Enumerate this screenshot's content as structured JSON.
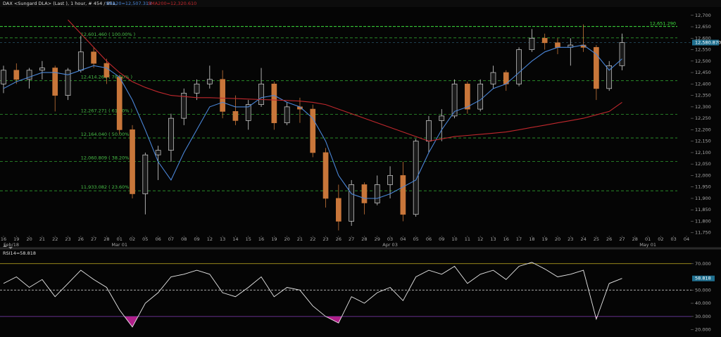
{
  "chart_data": [
    {
      "type": "candlestick",
      "title": "DAX <Sungard DLA> (Last ), 1 hour, # 454 / 851,",
      "categories": [
        "16",
        "19",
        "20",
        "21",
        "22",
        "23",
        "26",
        "27",
        "28",
        "01",
        "02",
        "05",
        "06",
        "07",
        "08",
        "09",
        "12",
        "13",
        "14",
        "15",
        "16",
        "19",
        "20",
        "21",
        "22",
        "23",
        "26",
        "27",
        "28",
        "29",
        "03",
        "04",
        "05",
        "06",
        "09",
        "10",
        "11",
        "12",
        "13",
        "16",
        "17",
        "18",
        "19",
        "20",
        "23",
        "24",
        "25",
        "26",
        "27",
        "28",
        "01",
        "02",
        "03",
        "04"
      ],
      "period_labels": [
        "Feb/18",
        "Mar 01",
        "Apr 03",
        "May 01"
      ],
      "open": [
        12400,
        12460,
        12420,
        12460,
        12470,
        12350,
        12460,
        12540,
        12490,
        12430,
        12200,
        11920,
        12090,
        12110,
        12250,
        12360,
        12400,
        12420,
        12280,
        12240,
        12310,
        12400,
        12230,
        12300,
        12290,
        12100,
        11900,
        11800,
        11960,
        11880,
        11960,
        12000,
        11830,
        12150,
        12240,
        12260,
        12400,
        12290,
        12400,
        12450,
        12400,
        12550,
        12600,
        12580,
        12560,
        12570,
        12560,
        12380,
        12480,
        null,
        null,
        null,
        null,
        null
      ],
      "high": [
        12480,
        12490,
        12470,
        12500,
        12480,
        12470,
        12610,
        12560,
        12510,
        12440,
        12220,
        12100,
        12130,
        12270,
        12380,
        12420,
        12480,
        12460,
        12350,
        12330,
        12470,
        12410,
        12320,
        12340,
        12310,
        12120,
        11960,
        11980,
        11970,
        12000,
        12040,
        12060,
        12160,
        12260,
        12290,
        12420,
        12410,
        12420,
        12480,
        12460,
        12560,
        12640,
        12620,
        12600,
        12600,
        12660,
        12570,
        12500,
        12620,
        null,
        null,
        null,
        null,
        null
      ],
      "low": [
        12360,
        12400,
        12380,
        12420,
        12280,
        12330,
        12450,
        12470,
        12400,
        12180,
        11900,
        11830,
        11980,
        12060,
        12220,
        12330,
        12380,
        12250,
        12220,
        12200,
        12300,
        12200,
        12220,
        12230,
        12080,
        11860,
        11760,
        11780,
        11830,
        11870,
        11900,
        11800,
        11820,
        12100,
        12150,
        12250,
        12270,
        12280,
        12380,
        12370,
        12390,
        12540,
        12550,
        12530,
        12480,
        12540,
        12330,
        12370,
        12460,
        null,
        null,
        null,
        null,
        null
      ],
      "close": [
        12460,
        12420,
        12460,
        12470,
        12350,
        12460,
        12540,
        12490,
        12430,
        12200,
        11920,
        12090,
        12110,
        12250,
        12360,
        12400,
        12420,
        12280,
        12240,
        12310,
        12400,
        12230,
        12300,
        12290,
        12100,
        11900,
        11800,
        11960,
        11880,
        11960,
        12000,
        11830,
        12150,
        12240,
        12260,
        12400,
        12290,
        12400,
        12450,
        12400,
        12550,
        12600,
        12580,
        12560,
        12570,
        12560,
        12380,
        12480,
        12580.87,
        null,
        null,
        null,
        null,
        null
      ],
      "up_color": "#d6d6d6",
      "down_color": "#c8763a",
      "series": [
        {
          "name": "SMA20=12,507.313",
          "color": "#4a86d8",
          "values": [
            12380,
            12410,
            12430,
            12450,
            12450,
            12440,
            12460,
            12480,
            12470,
            12430,
            12330,
            12200,
            12060,
            11980,
            12100,
            12200,
            12300,
            12320,
            12300,
            12300,
            12340,
            12350,
            12320,
            12300,
            12250,
            12150,
            12000,
            11920,
            11900,
            11900,
            11920,
            11950,
            11980,
            12100,
            12200,
            12280,
            12300,
            12330,
            12380,
            12400,
            12450,
            12500,
            12540,
            12560,
            12560,
            12570,
            12530,
            12460,
            12510,
            null,
            null,
            null,
            null,
            null
          ]
        },
        {
          "name": "SMA200=12,320.610",
          "color": "#c0282d",
          "values": [
            null,
            null,
            null,
            null,
            null,
            12680,
            12620,
            12560,
            12500,
            12450,
            12410,
            12385,
            12365,
            12350,
            12345,
            12340,
            12340,
            12338,
            12336,
            12334,
            12332,
            12330,
            12328,
            12325,
            12320,
            12310,
            12290,
            12270,
            12250,
            12230,
            12210,
            12190,
            12170,
            12150,
            12160,
            12170,
            12175,
            12180,
            12185,
            12190,
            12200,
            12210,
            12220,
            12230,
            12240,
            12250,
            12265,
            12280,
            12320,
            null,
            null,
            null,
            null,
            null
          ]
        }
      ],
      "fib_levels": [
        {
          "value": 12601.46,
          "label": "12,601.460 ( 100.00% )"
        },
        {
          "value": 12414.264,
          "label": "12,414.264 ( 78.60% )"
        },
        {
          "value": 12267.271,
          "label": "12,267.271 ( 61.80% )"
        },
        {
          "value": 12164.04,
          "label": "12,164.040 ( 50.00% )"
        },
        {
          "value": 12060.809,
          "label": "12,060.809 ( 38.20% )"
        },
        {
          "value": 11933.082,
          "label": "11,933.082 ( 23.60% )"
        }
      ],
      "fib_color": "#2e9e2e",
      "alert_line": {
        "value": 12651.29,
        "label": "12,651.290",
        "color": "#3ee03e"
      },
      "current_price": {
        "value": 12580.87,
        "label": "12,580.870",
        "color": "#1f6f8f"
      },
      "ylim": [
        11740,
        12730
      ],
      "yticks": [
        {
          "value": 12700,
          "label": "12,700"
        },
        {
          "value": 12650,
          "label": "12,650"
        },
        {
          "value": 12600,
          "label": "12,600"
        },
        {
          "value": 12550,
          "label": "12,550"
        },
        {
          "value": 12500,
          "label": "12,500"
        },
        {
          "value": 12450,
          "label": "12,450"
        },
        {
          "value": 12400,
          "label": "12,400"
        },
        {
          "value": 12350,
          "label": "12,350"
        },
        {
          "value": 12300,
          "label": "12,300"
        },
        {
          "value": 12250,
          "label": "12,250"
        },
        {
          "value": 12200,
          "label": "12,200"
        },
        {
          "value": 12150,
          "label": "12,150"
        },
        {
          "value": 12100,
          "label": "12,100"
        },
        {
          "value": 12050,
          "label": "12,050"
        },
        {
          "value": 12000,
          "label": "12,000"
        },
        {
          "value": 11950,
          "label": "11,950"
        },
        {
          "value": 11900,
          "label": "11,900"
        },
        {
          "value": 11850,
          "label": "11,850"
        },
        {
          "value": 11800,
          "label": "11,800"
        },
        {
          "value": 11750,
          "label": "11,750"
        }
      ]
    },
    {
      "type": "line",
      "title": "RSI14=58.818",
      "series": [
        {
          "name": "RSI14",
          "color": "#e8e8e8",
          "values": [
            55,
            60,
            52,
            58,
            45,
            55,
            65,
            58,
            52,
            35,
            22,
            40,
            48,
            60,
            62,
            65,
            62,
            48,
            45,
            52,
            60,
            45,
            52,
            50,
            38,
            30,
            25,
            45,
            40,
            48,
            52,
            42,
            60,
            65,
            62,
            68,
            55,
            62,
            65,
            58,
            68,
            71,
            66,
            60,
            62,
            65,
            28,
            55,
            58.818,
            null,
            null,
            null,
            null,
            null
          ]
        }
      ],
      "current_value": {
        "value": 58.818,
        "label": "58.818",
        "color": "#1f6f8f"
      },
      "overbought": {
        "value": 70,
        "color": "#c8b020"
      },
      "oversold": {
        "value": 30,
        "color": "#6a3aa0",
        "fill": "#b0208a"
      },
      "midline": 50,
      "ylim": [
        15.5,
        80
      ],
      "yticks": [
        {
          "value": 70,
          "label": "70.000"
        },
        {
          "value": 50,
          "label": "50.000"
        },
        {
          "value": 40,
          "label": "40.000"
        },
        {
          "value": 30,
          "label": "30.000"
        },
        {
          "value": 20,
          "label": "20.000"
        }
      ]
    }
  ]
}
